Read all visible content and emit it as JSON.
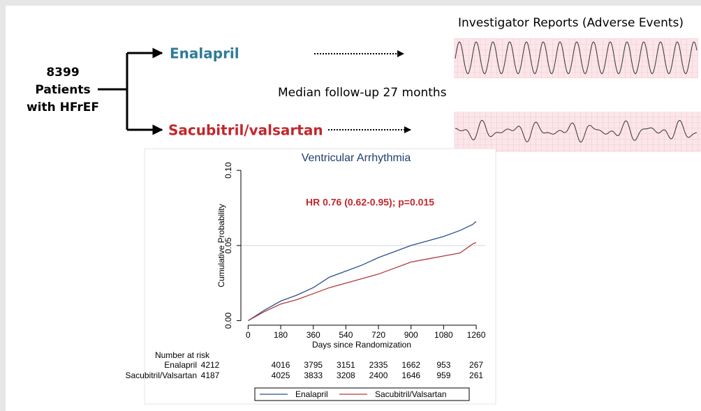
{
  "flow": {
    "patients": [
      "8399",
      "Patients",
      "with HFrEF"
    ],
    "arm1": "Enalapril",
    "arm2": "Sacubitril/valsartan",
    "follow_up": "Median follow-up 27 months",
    "reports": "Investigator Reports (Adverse Events)"
  },
  "chart_data": {
    "type": "line",
    "title": "Ventricular Arrhythmia",
    "annotation": "HR 0.76 (0.62-0.95); p=0.015",
    "x_label": "Days since Randomization",
    "y_label": "Cumulative Probability",
    "x": [
      0,
      90,
      180,
      270,
      360,
      450,
      540,
      630,
      720,
      810,
      900,
      990,
      1080,
      1170,
      1240,
      1260
    ],
    "series": [
      {
        "name": "Enalapril",
        "color": "#2c4f8c",
        "values": [
          0,
          0.007,
          0.013,
          0.017,
          0.022,
          0.029,
          0.033,
          0.037,
          0.042,
          0.046,
          0.05,
          0.053,
          0.056,
          0.06,
          0.064,
          0.066
        ]
      },
      {
        "name": "Sacubitril/Valsartan",
        "color": "#b03a3a",
        "values": [
          0,
          0.006,
          0.011,
          0.014,
          0.018,
          0.022,
          0.025,
          0.028,
          0.031,
          0.035,
          0.039,
          0.041,
          0.043,
          0.045,
          0.051,
          0.052
        ]
      }
    ],
    "xlim": [
      -40,
      1310
    ],
    "ylim": [
      -0.003,
      0.101
    ],
    "xticks": [
      0,
      180,
      360,
      540,
      720,
      900,
      1080,
      1260
    ],
    "yticks": [
      {
        "value": 0,
        "label": "0.00"
      },
      {
        "value": 0.05,
        "label": "0.05"
      },
      {
        "value": 0.1,
        "label": "0.10"
      }
    ],
    "reference_line": 0.05,
    "at_risk_title": "Number at risk",
    "at_risk": [
      [
        4212,
        4016,
        3795,
        3151,
        2335,
        1662,
        953,
        267
      ],
      [
        4187,
        4025,
        3833,
        3208,
        2400,
        1646,
        959,
        261
      ]
    ]
  }
}
